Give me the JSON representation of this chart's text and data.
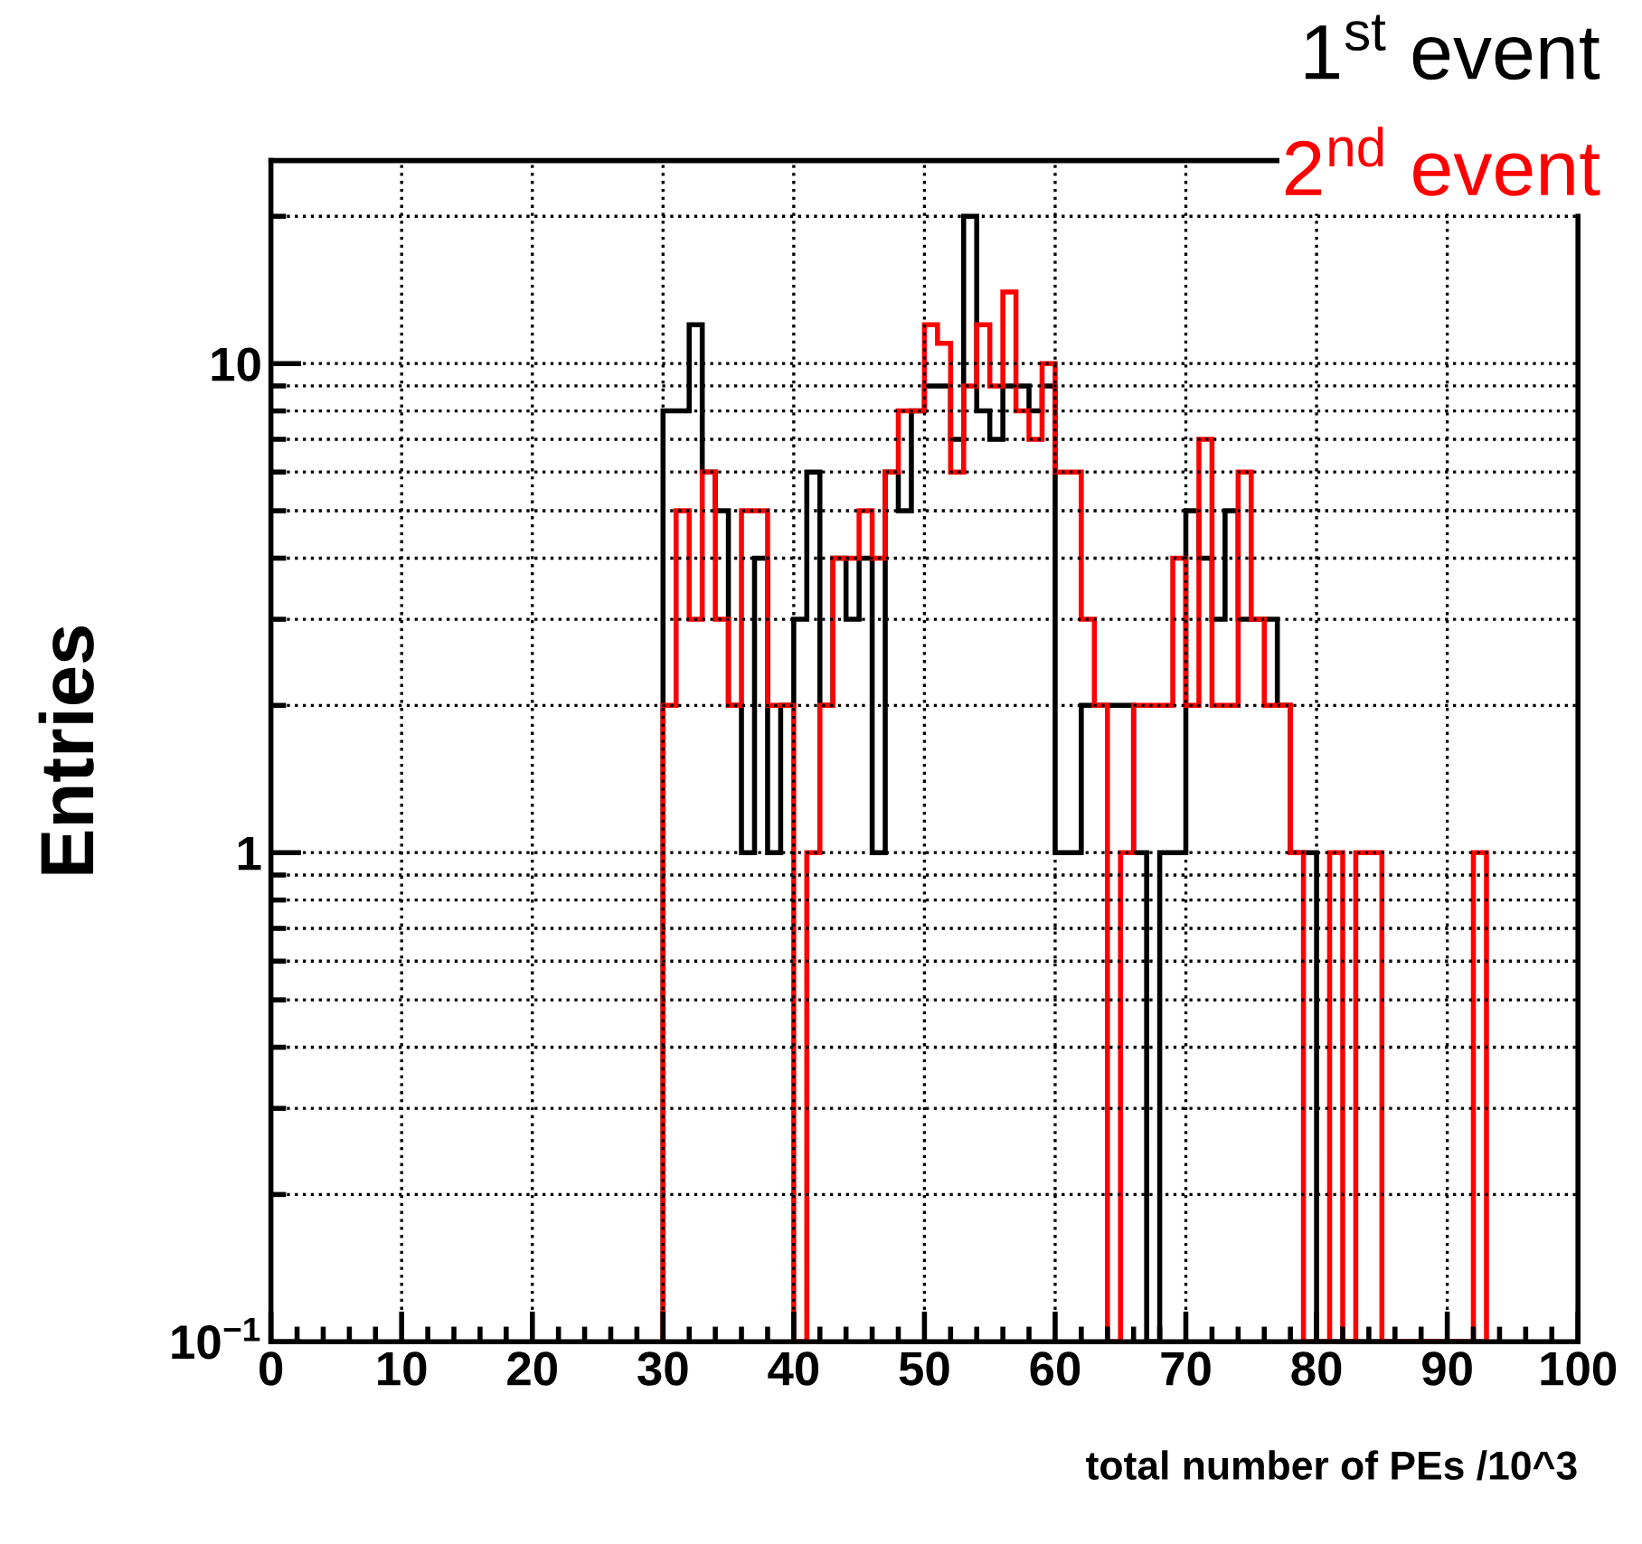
{
  "chart_data": {
    "type": "histogram",
    "xlabel": "total number of PEs /10^3",
    "ylabel": "Entries",
    "bins": [
      30,
      31,
      32,
      33,
      34,
      35,
      36,
      37,
      38,
      39,
      40,
      41,
      42,
      43,
      44,
      45,
      46,
      47,
      48,
      49,
      50,
      51,
      52,
      53,
      54,
      55,
      56,
      57,
      58,
      59,
      60,
      61,
      62,
      63,
      64,
      65,
      66,
      67,
      68,
      69,
      70,
      71,
      72,
      73,
      74,
      75,
      76,
      77,
      78,
      79,
      80,
      81,
      82,
      83,
      84,
      85,
      86,
      87,
      88,
      89,
      90,
      91,
      92,
      93
    ],
    "series": [
      {
        "name": "1$^{st}$ event",
        "color": "#000000",
        "values": [
          8,
          8,
          12,
          6,
          5,
          2,
          1,
          4,
          1,
          2,
          3,
          6,
          2,
          4,
          3,
          4,
          1,
          6,
          5,
          8,
          9,
          9,
          7,
          20,
          8,
          7,
          9,
          9,
          8,
          9,
          1,
          1,
          2,
          2,
          2,
          2,
          1,
          null,
          1,
          1,
          5,
          4,
          3,
          5,
          3,
          3,
          3,
          2,
          1,
          1,
          null,
          null,
          null,
          null,
          null,
          null,
          null,
          null,
          null,
          null,
          null,
          null,
          null
        ]
      },
      {
        "name": "2$^{nd}$ event",
        "color": "#ff0000",
        "values": [
          2,
          5,
          3,
          6,
          3,
          2,
          5,
          5,
          2,
          2,
          null,
          1,
          2,
          4,
          4,
          5,
          4,
          6,
          8,
          8,
          12,
          11,
          6,
          9,
          12,
          9,
          14,
          8,
          7,
          10,
          6,
          6,
          3,
          2,
          null,
          1,
          2,
          2,
          2,
          4,
          2,
          7,
          2,
          2,
          6,
          3,
          2,
          2,
          1,
          null,
          null,
          1,
          null,
          1,
          1,
          null,
          null,
          null,
          null,
          null,
          null,
          null,
          1
        ]
      }
    ],
    "xlim": [
      0,
      100
    ],
    "xticks": [
      0,
      10,
      20,
      30,
      40,
      50,
      60,
      70,
      80,
      90,
      100
    ],
    "ylim": [
      0.1,
      26
    ],
    "yticks": [
      {
        "value": 0.1,
        "label": "10$^{−1}$"
      },
      1,
      10
    ],
    "log": true,
    "grid": true,
    "legend": "top right"
  }
}
